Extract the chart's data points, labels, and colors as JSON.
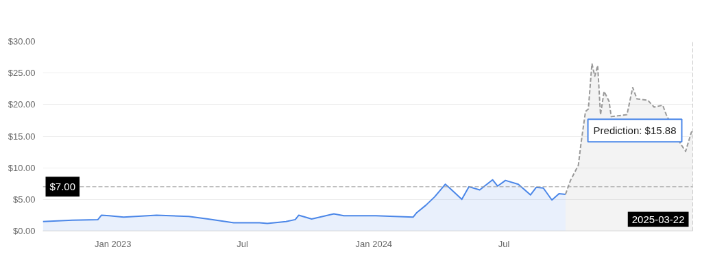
{
  "chart_data": {
    "type": "area",
    "grid": "y",
    "xlim": [
      "2022-09-25",
      "2025-03-22"
    ],
    "ylim": [
      0,
      30
    ],
    "xticks": [
      {
        "value": "2023-01-01",
        "label": "Jan 2023"
      },
      {
        "value": "2023-07-01",
        "label": "Jul"
      },
      {
        "value": "2024-01-01",
        "label": "Jan 2024"
      },
      {
        "value": "2024-07-01",
        "label": "Jul"
      }
    ],
    "yticks": [
      {
        "value": 0,
        "label": "$0.00"
      },
      {
        "value": 5,
        "label": "$5.00"
      },
      {
        "value": 10,
        "label": "$10.00"
      },
      {
        "value": 15,
        "label": "$15.00"
      },
      {
        "value": 20,
        "label": "$20.00"
      },
      {
        "value": 25,
        "label": "$25.00"
      },
      {
        "value": 30,
        "label": "$30.00"
      }
    ],
    "series": [
      {
        "color": "#4a86e8",
        "line_style": "solid",
        "x": [
          "2022-09-25",
          "2022-11-05",
          "2022-12-11",
          "2022-12-16",
          "2022-12-27",
          "2023-01-16",
          "2023-03-03",
          "2023-04-17",
          "2023-05-14",
          "2023-06-19",
          "2023-07-25",
          "2023-08-05",
          "2023-08-31",
          "2023-09-13",
          "2023-09-18",
          "2023-10-06",
          "2023-11-06",
          "2023-11-20",
          "2024-01-04",
          "2024-02-25",
          "2024-03-01",
          "2024-03-14",
          "2024-03-26",
          "2024-04-10",
          "2024-04-16",
          "2024-05-03",
          "2024-05-13",
          "2024-05-28",
          "2024-06-15",
          "2024-06-22",
          "2024-07-03",
          "2024-07-21",
          "2024-08-07",
          "2024-08-15",
          "2024-08-25",
          "2024-09-06",
          "2024-09-16",
          "2024-09-25"
        ],
        "values": [
          1.5,
          1.7,
          1.8,
          2.5,
          2.4,
          2.2,
          2.5,
          2.3,
          1.9,
          1.3,
          1.3,
          1.2,
          1.5,
          1.8,
          2.5,
          1.9,
          2.7,
          2.4,
          2.4,
          2.2,
          2.9,
          4.1,
          5.4,
          7.4,
          6.8,
          5.0,
          7.0,
          6.5,
          8.1,
          7.1,
          8.0,
          7.4,
          5.7,
          6.9,
          6.8,
          4.9,
          5.9,
          5.8
        ]
      },
      {
        "color": "#999999",
        "line_style": "dashed",
        "x": [
          "2024-09-25",
          "2024-10-02",
          "2024-10-13",
          "2024-10-17",
          "2024-10-23",
          "2024-10-27",
          "2024-11-01",
          "2024-11-05",
          "2024-11-09",
          "2024-11-13",
          "2024-11-18",
          "2024-11-25",
          "2024-11-28",
          "2024-12-20",
          "2024-12-28",
          "2025-01-03",
          "2025-01-18",
          "2025-01-27",
          "2025-02-08",
          "2025-02-13",
          "2025-03-05",
          "2025-03-12",
          "2025-03-20",
          "2025-03-22"
        ],
        "values": [
          5.8,
          8.0,
          10.4,
          14.1,
          18.9,
          19.3,
          26.5,
          24.5,
          26.2,
          18.4,
          22.1,
          20.5,
          18.1,
          18.4,
          22.7,
          20.9,
          20.7,
          19.6,
          19.9,
          18.4,
          13.8,
          12.6,
          15.6,
          15.88
        ]
      }
    ],
    "ref_lines": [
      {
        "axis": "y",
        "value": 7,
        "label": "$7.00",
        "color": "#999999",
        "line_style": "dashed"
      },
      {
        "axis": "x",
        "value": "2025-03-22",
        "label": "2025-03-22",
        "color": "#999999",
        "line_style": "dashed"
      }
    ],
    "annotations": [
      {
        "text": "Prediction: $15.88",
        "x": "2025-03-22",
        "y": 15.88
      }
    ]
  }
}
